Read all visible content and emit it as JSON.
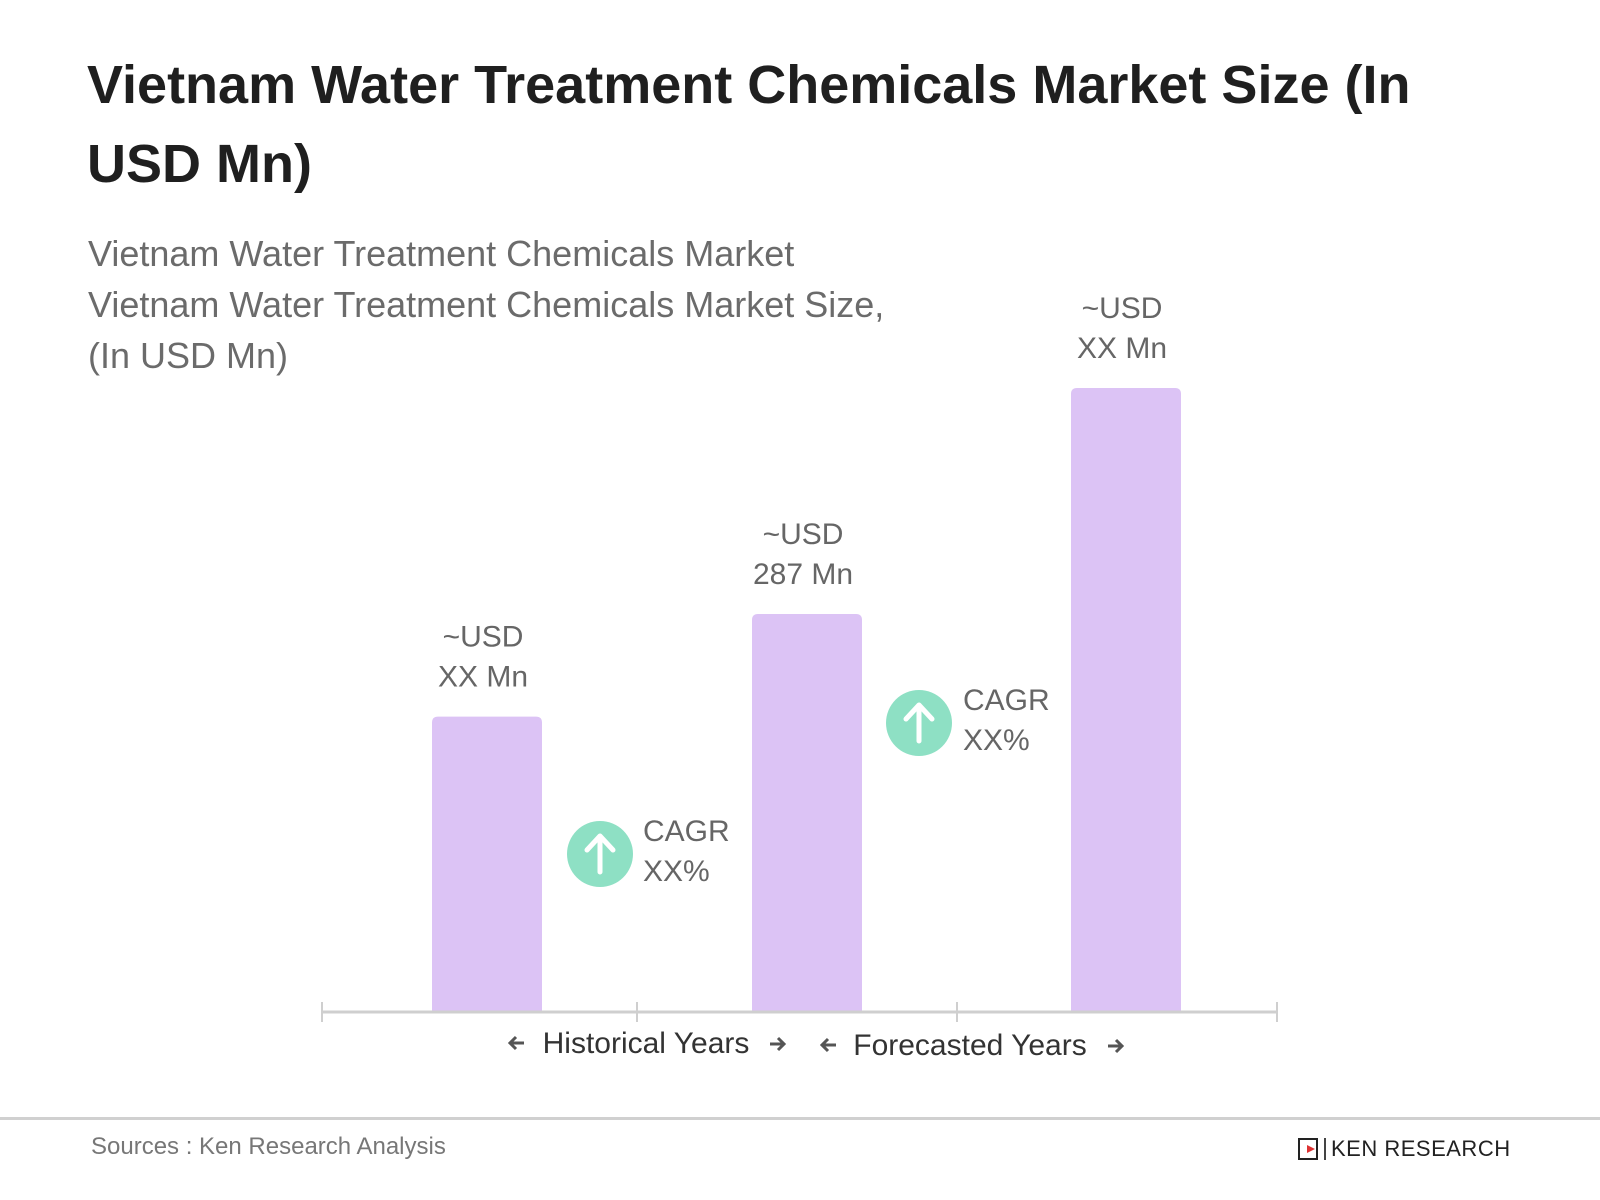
{
  "title": "Vietnam Water Treatment Chemicals Market Size (In USD Mn)",
  "subtitle": [
    "Vietnam Water Treatment Chemicals Market",
    "Vietnam Water Treatment Chemicals Market Size,",
    "(In USD Mn)"
  ],
  "chart_data": {
    "type": "bar",
    "title": "Vietnam Water Treatment Chemicals Market Size (In USD Mn)",
    "categories": [
      "",
      "",
      ""
    ],
    "values": [
      213,
      287,
      450
    ],
    "data_labels": [
      {
        "line1": "~USD",
        "line2": "XX Mn"
      },
      {
        "line1": "~USD",
        "line2": "287 Mn"
      },
      {
        "line1": "~USD",
        "line2": "XX Mn"
      }
    ],
    "annotations": [
      {
        "label": "CAGR",
        "value": "XX%",
        "icon": "arrow-up-circle-icon"
      },
      {
        "label": "CAGR",
        "value": "XX%",
        "icon": "arrow-up-circle-icon"
      }
    ],
    "period_labels": [
      "Historical Years",
      "Forecasted Years"
    ],
    "ylim": [
      0,
      470
    ],
    "grid": false,
    "colors": {
      "bar": "#dcc3f5",
      "cagr_icon": "#8ee0c4",
      "axis": "#cfcfcf"
    }
  },
  "footer": {
    "sources": "Sources : Ken Research Analysis",
    "logo": "KEN RESEARCH"
  }
}
